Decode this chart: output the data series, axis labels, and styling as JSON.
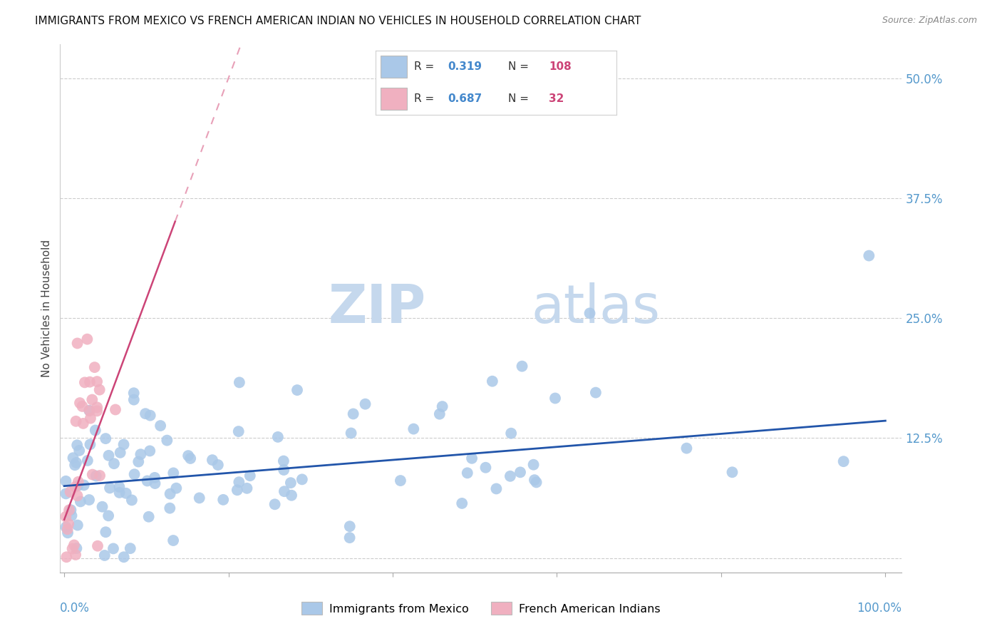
{
  "title": "IMMIGRANTS FROM MEXICO VS FRENCH AMERICAN INDIAN NO VEHICLES IN HOUSEHOLD CORRELATION CHART",
  "source": "Source: ZipAtlas.com",
  "ylabel": "No Vehicles in Household",
  "legend_blue_R": "0.319",
  "legend_blue_N": "108",
  "legend_pink_R": "0.687",
  "legend_pink_N": "32",
  "legend_label_blue": "Immigrants from Mexico",
  "legend_label_pink": "French American Indians",
  "blue_color": "#aac8e8",
  "pink_color": "#f0b0c0",
  "blue_line_color": "#2255aa",
  "pink_line_color": "#cc4477",
  "pink_dash_color": "#e8a0b8",
  "watermark_zip": "ZIP",
  "watermark_atlas": "atlas",
  "blue_intercept": 0.075,
  "blue_slope": 0.068,
  "pink_intercept": 0.04,
  "pink_slope": 2.3,
  "xlim": [
    0.0,
    1.0
  ],
  "ylim": [
    0.0,
    0.52
  ],
  "yticks": [
    0.0,
    0.125,
    0.25,
    0.375,
    0.5
  ],
  "ytick_labels": [
    "",
    "12.5%",
    "25.0%",
    "37.5%",
    "50.0%"
  ]
}
